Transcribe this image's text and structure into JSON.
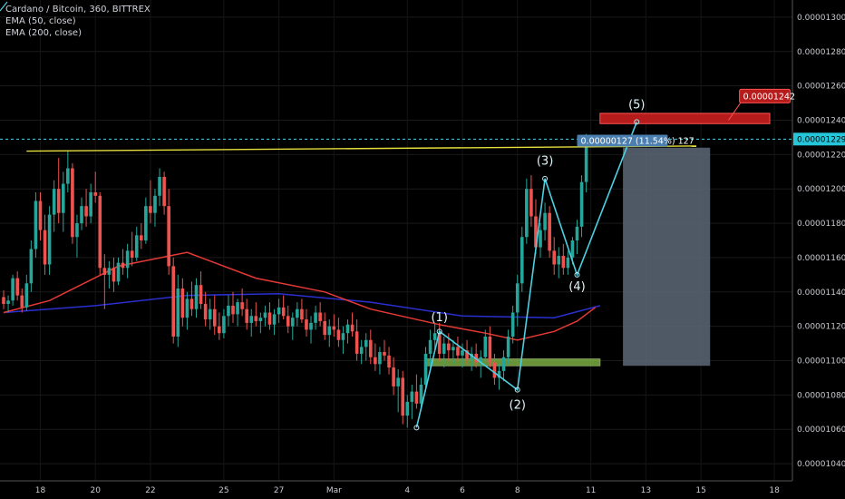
{
  "header": {
    "symbol_line": "Cardano / Bitcoin, 360, BITTREX",
    "indicators": [
      "EMA (50, close)",
      "EMA (200, close)"
    ]
  },
  "chart_data": {
    "type": "candlestick",
    "ylim": [
      1.03e-05,
      1.31e-05
    ],
    "y_ticks": [
      "0.00001300",
      "0.00001280",
      "0.00001260",
      "0.00001240",
      "0.00001220",
      "0.00001200",
      "0.00001180",
      "0.00001160",
      "0.00001140",
      "0.00001120",
      "0.00001100",
      "0.00001080",
      "0.00001060",
      "0.00001040"
    ],
    "y_tick_values": [
      1.3e-05,
      1.28e-05,
      1.26e-05,
      1.24e-05,
      1.22e-05,
      1.2e-05,
      1.18e-05,
      1.16e-05,
      1.14e-05,
      1.12e-05,
      1.1e-05,
      1.08e-05,
      1.06e-05,
      1.04e-05
    ],
    "x_ticks": [
      "18",
      "20",
      "22",
      "25",
      "27",
      "Mar",
      "4",
      "6",
      "8",
      "11",
      "13",
      "15",
      "18"
    ],
    "x_tick_index": [
      8,
      20,
      32,
      48,
      60,
      72,
      88,
      100,
      112,
      128,
      140,
      152,
      168
    ],
    "current_price": "0.00001229",
    "current_price_value": 1.229e-05,
    "target_price": "0.00001242",
    "target_price_value": 1.242e-05,
    "measure_label": "0.00000127 (11.54%) 127",
    "wave_labels": [
      {
        "label": "(1)",
        "index": 95,
        "price": 1.123e-05
      },
      {
        "label": "(2)",
        "index": 112,
        "price": 1.072e-05
      },
      {
        "label": "(3)",
        "index": 118,
        "price": 1.214e-05
      },
      {
        "label": "(4)",
        "index": 125,
        "price": 1.141e-05
      },
      {
        "label": "(5)",
        "index": 138,
        "price": 1.247e-05
      }
    ],
    "wave_points": [
      {
        "index": 90,
        "price": 1.061e-05
      },
      {
        "index": 95,
        "price": 1.117e-05
      },
      {
        "index": 112,
        "price": 1.083e-05
      },
      {
        "index": 118,
        "price": 1.206e-05
      },
      {
        "index": 125,
        "price": 1.15e-05
      },
      {
        "index": 138,
        "price": 1.239e-05
      }
    ],
    "resistance_line": {
      "from": {
        "index": 5,
        "price": 1.222e-05
      },
      "to": {
        "index": 151,
        "price": 1.225e-05
      }
    },
    "support_zone": {
      "from_index": 92,
      "to_index": 130,
      "top": 1.101e-05,
      "bottom": 1.097e-05
    },
    "target_zone": {
      "from_index": 130,
      "to_index": 167,
      "top": 1.244e-05,
      "bottom": 1.238e-05
    },
    "projection_box": {
      "from_index": 135,
      "to_index": 154,
      "top": 1.224e-05,
      "bottom": 1.097e-05
    },
    "ema50": [
      [
        0,
        1.128e-05
      ],
      [
        10,
        1.135e-05
      ],
      [
        25,
        1.155e-05
      ],
      [
        40,
        1.163e-05
      ],
      [
        45,
        1.158e-05
      ],
      [
        55,
        1.148e-05
      ],
      [
        70,
        1.14e-05
      ],
      [
        80,
        1.13e-05
      ],
      [
        95,
        1.121e-05
      ],
      [
        105,
        1.116e-05
      ],
      [
        112,
        1.112e-05
      ],
      [
        120,
        1.117e-05
      ],
      [
        125,
        1.123e-05
      ],
      [
        129,
        1.131e-05
      ]
    ],
    "ema200": [
      [
        0,
        1.128e-05
      ],
      [
        20,
        1.132e-05
      ],
      [
        40,
        1.138e-05
      ],
      [
        60,
        1.139e-05
      ],
      [
        80,
        1.134e-05
      ],
      [
        100,
        1.126e-05
      ],
      [
        120,
        1.125e-05
      ],
      [
        130,
        1.132e-05
      ]
    ],
    "ohlc": [
      [
        1.137e-05,
        1.141e-05,
        1.13e-05,
        1.133e-05
      ],
      [
        1.133e-05,
        1.138e-05,
        1.128e-05,
        1.135e-05
      ],
      [
        1.135e-05,
        1.15e-05,
        1.132e-05,
        1.148e-05
      ],
      [
        1.148e-05,
        1.152e-05,
        1.135e-05,
        1.138e-05
      ],
      [
        1.138e-05,
        1.142e-05,
        1.128e-05,
        1.131e-05
      ],
      [
        1.131e-05,
        1.15e-05,
        1.129e-05,
        1.145e-05
      ],
      [
        1.145e-05,
        1.17e-05,
        1.14e-05,
        1.165e-05
      ],
      [
        1.165e-05,
        1.198e-05,
        1.16e-05,
        1.193e-05
      ],
      [
        1.193e-05,
        1.198e-05,
        1.17e-05,
        1.176e-05
      ],
      [
        1.176e-05,
        1.185e-05,
        1.15e-05,
        1.156e-05
      ],
      [
        1.156e-05,
        1.19e-05,
        1.15e-05,
        1.185e-05
      ],
      [
        1.185e-05,
        1.205e-05,
        1.175e-05,
        1.2e-05
      ],
      [
        1.2e-05,
        1.218e-05,
        1.18e-05,
        1.186e-05
      ],
      [
        1.186e-05,
        1.21e-05,
        1.175e-05,
        1.203e-05
      ],
      [
        1.203e-05,
        1.222e-05,
        1.198e-05,
        1.212e-05
      ],
      [
        1.212e-05,
        1.215e-05,
        1.168e-05,
        1.172e-05
      ],
      [
        1.172e-05,
        1.185e-05,
        1.16e-05,
        1.18e-05
      ],
      [
        1.18e-05,
        1.195e-05,
        1.176e-05,
        1.19e-05
      ],
      [
        1.19e-05,
        1.2e-05,
        1.178e-05,
        1.184e-05
      ],
      [
        1.184e-05,
        1.203e-05,
        1.18e-05,
        1.198e-05
      ],
      [
        1.198e-05,
        1.21e-05,
        1.192e-05,
        1.196e-05
      ],
      [
        1.196e-05,
        1.198e-05,
        1.15e-05,
        1.154e-05
      ],
      [
        1.154e-05,
        1.162e-05,
        1.13e-05,
        1.15e-05
      ],
      [
        1.15e-05,
        1.158e-05,
        1.142e-05,
        1.154e-05
      ],
      [
        1.154e-05,
        1.16e-05,
        1.14e-05,
        1.146e-05
      ],
      [
        1.146e-05,
        1.16e-05,
        1.144e-05,
        1.157e-05
      ],
      [
        1.157e-05,
        1.165e-05,
        1.15e-05,
        1.154e-05
      ],
      [
        1.154e-05,
        1.168e-05,
        1.148e-05,
        1.164e-05
      ],
      [
        1.164e-05,
        1.175e-05,
        1.155e-05,
        1.16e-05
      ],
      [
        1.16e-05,
        1.178e-05,
        1.158e-05,
        1.173e-05
      ],
      [
        1.173e-05,
        1.18e-05,
        1.165e-05,
        1.17e-05
      ],
      [
        1.17e-05,
        1.195e-05,
        1.168e-05,
        1.19e-05
      ],
      [
        1.19e-05,
        1.205e-05,
        1.18e-05,
        1.186e-05
      ],
      [
        1.186e-05,
        1.2e-05,
        1.178e-05,
        1.196e-05
      ],
      [
        1.196e-05,
        1.212e-05,
        1.19e-05,
        1.207e-05
      ],
      [
        1.207e-05,
        1.21e-05,
        1.185e-05,
        1.19e-05
      ],
      [
        1.19e-05,
        1.2e-05,
        1.15e-05,
        1.155e-05
      ],
      [
        1.155e-05,
        1.16e-05,
        1.11e-05,
        1.114e-05
      ],
      [
        1.114e-05,
        1.15e-05,
        1.108e-05,
        1.142e-05
      ],
      [
        1.142e-05,
        1.148e-05,
        1.12e-05,
        1.125e-05
      ],
      [
        1.125e-05,
        1.14e-05,
        1.118e-05,
        1.136e-05
      ],
      [
        1.136e-05,
        1.146e-05,
        1.126e-05,
        1.13e-05
      ],
      [
        1.13e-05,
        1.148e-05,
        1.125e-05,
        1.144e-05
      ],
      [
        1.144e-05,
        1.152e-05,
        1.13e-05,
        1.133e-05
      ],
      [
        1.133e-05,
        1.14e-05,
        1.12e-05,
        1.124e-05
      ],
      [
        1.124e-05,
        1.136e-05,
        1.118e-05,
        1.13e-05
      ],
      [
        1.13e-05,
        1.138e-05,
        1.115e-05,
        1.12e-05
      ],
      [
        1.12e-05,
        1.128e-05,
        1.112e-05,
        1.116e-05
      ],
      [
        1.116e-05,
        1.13e-05,
        1.113e-05,
        1.126e-05
      ],
      [
        1.126e-05,
        1.138e-05,
        1.12e-05,
        1.132e-05
      ],
      [
        1.132e-05,
        1.14e-05,
        1.122e-05,
        1.127e-05
      ],
      [
        1.127e-05,
        1.136e-05,
        1.12e-05,
        1.134e-05
      ],
      [
        1.134e-05,
        1.142e-05,
        1.126e-05,
        1.13e-05
      ],
      [
        1.13e-05,
        1.136e-05,
        1.118e-05,
        1.122e-05
      ],
      [
        1.122e-05,
        1.13e-05,
        1.114e-05,
        1.126e-05
      ],
      [
        1.126e-05,
        1.134e-05,
        1.12e-05,
        1.123e-05
      ],
      [
        1.123e-05,
        1.128e-05,
        1.116e-05,
        1.125e-05
      ],
      [
        1.125e-05,
        1.132e-05,
        1.12e-05,
        1.128e-05
      ],
      [
        1.128e-05,
        1.134e-05,
        1.118e-05,
        1.121e-05
      ],
      [
        1.121e-05,
        1.13e-05,
        1.115e-05,
        1.127e-05
      ],
      [
        1.127e-05,
        1.136e-05,
        1.122e-05,
        1.131e-05
      ],
      [
        1.131e-05,
        1.138e-05,
        1.124e-05,
        1.126e-05
      ],
      [
        1.126e-05,
        1.132e-05,
        1.116e-05,
        1.12e-05
      ],
      [
        1.12e-05,
        1.128e-05,
        1.112e-05,
        1.125e-05
      ],
      [
        1.125e-05,
        1.134e-05,
        1.12e-05,
        1.13e-05
      ],
      [
        1.13e-05,
        1.136e-05,
        1.122e-05,
        1.124e-05
      ],
      [
        1.124e-05,
        1.13e-05,
        1.114e-05,
        1.118e-05
      ],
      [
        1.118e-05,
        1.126e-05,
        1.11e-05,
        1.122e-05
      ],
      [
        1.122e-05,
        1.132e-05,
        1.118e-05,
        1.128e-05
      ],
      [
        1.128e-05,
        1.134e-05,
        1.12e-05,
        1.123e-05
      ],
      [
        1.123e-05,
        1.128e-05,
        1.112e-05,
        1.115e-05
      ],
      [
        1.115e-05,
        1.124e-05,
        1.108e-05,
        1.12e-05
      ],
      [
        1.12e-05,
        1.127e-05,
        1.114e-05,
        1.118e-05
      ],
      [
        1.118e-05,
        1.125e-05,
        1.108e-05,
        1.112e-05
      ],
      [
        1.112e-05,
        1.12e-05,
        1.104e-05,
        1.116e-05
      ],
      [
        1.116e-05,
        1.124e-05,
        1.11e-05,
        1.121e-05
      ],
      [
        1.121e-05,
        1.128e-05,
        1.114e-05,
        1.117e-05
      ],
      [
        1.117e-05,
        1.124e-05,
        1.1e-05,
        1.104e-05
      ],
      [
        1.104e-05,
        1.112e-05,
        1.098e-05,
        1.108e-05
      ],
      [
        1.108e-05,
        1.116e-05,
        1.1e-05,
        1.112e-05
      ],
      [
        1.112e-05,
        1.118e-05,
        1.098e-05,
        1.102e-05
      ],
      [
        1.102e-05,
        1.11e-05,
        1.094e-05,
        1.098e-05
      ],
      [
        1.098e-05,
        1.108e-05,
        1.092e-05,
        1.105e-05
      ],
      [
        1.105e-05,
        1.112e-05,
        1.1e-05,
        1.103e-05
      ],
      [
        1.103e-05,
        1.108e-05,
        1.092e-05,
        1.096e-05
      ],
      [
        1.096e-05,
        1.102e-05,
        1.08e-05,
        1.085e-05
      ],
      [
        1.085e-05,
        1.095e-05,
        1.07e-05,
        1.09e-05
      ],
      [
        1.09e-05,
        1.094e-05,
        1.063e-05,
        1.068e-05
      ],
      [
        1.068e-05,
        1.08e-05,
        1.061e-05,
        1.076e-05
      ],
      [
        1.076e-05,
        1.086e-05,
        1.066e-05,
        1.082e-05
      ],
      [
        1.082e-05,
        1.092e-05,
        1.072e-05,
        1.075e-05
      ],
      [
        1.075e-05,
        1.09e-05,
        1.072e-05,
        1.086e-05
      ],
      [
        1.086e-05,
        1.108e-05,
        1.082e-05,
        1.104e-05
      ],
      [
        1.104e-05,
        1.118e-05,
        1.096e-05,
        1.112e-05
      ],
      [
        1.112e-05,
        1.122e-05,
        1.106e-05,
        1.116e-05
      ],
      [
        1.116e-05,
        1.122e-05,
        1.1e-05,
        1.104e-05
      ],
      [
        1.104e-05,
        1.114e-05,
        1.096e-05,
        1.11e-05
      ],
      [
        1.11e-05,
        1.116e-05,
        1.1e-05,
        1.106e-05
      ],
      [
        1.106e-05,
        1.112e-05,
        1.098e-05,
        1.108e-05
      ],
      [
        1.108e-05,
        1.114e-05,
        1.1e-05,
        1.103e-05
      ],
      [
        1.103e-05,
        1.11e-05,
        1.096e-05,
        1.106e-05
      ],
      [
        1.106e-05,
        1.112e-05,
        1.098e-05,
        1.101e-05
      ],
      [
        1.101e-05,
        1.108e-05,
        1.094e-05,
        1.104e-05
      ],
      [
        1.104e-05,
        1.11e-05,
        1.096e-05,
        1.099e-05
      ],
      [
        1.099e-05,
        1.106e-05,
        1.09e-05,
        1.102e-05
      ],
      [
        1.102e-05,
        1.118e-05,
        1.098e-05,
        1.114e-05
      ],
      [
        1.114e-05,
        1.12e-05,
        1.096e-05,
        1.099e-05
      ],
      [
        1.099e-05,
        1.104e-05,
        1.086e-05,
        1.09e-05
      ],
      [
        1.09e-05,
        1.098e-05,
        1.083e-05,
        1.094e-05
      ],
      [
        1.094e-05,
        1.106e-05,
        1.088e-05,
        1.102e-05
      ],
      [
        1.102e-05,
        1.118e-05,
        1.098e-05,
        1.114e-05
      ],
      [
        1.114e-05,
        1.132e-05,
        1.11e-05,
        1.128e-05
      ],
      [
        1.128e-05,
        1.15e-05,
        1.12e-05,
        1.145e-05
      ],
      [
        1.145e-05,
        1.178e-05,
        1.14e-05,
        1.172e-05
      ],
      [
        1.172e-05,
        1.206e-05,
        1.168e-05,
        1.2e-05
      ],
      [
        1.2e-05,
        1.208e-05,
        1.178e-05,
        1.184e-05
      ],
      [
        1.184e-05,
        1.194e-05,
        1.162e-05,
        1.166e-05
      ],
      [
        1.166e-05,
        1.18e-05,
        1.16e-05,
        1.176e-05
      ],
      [
        1.176e-05,
        1.192e-05,
        1.17e-05,
        1.186e-05
      ],
      [
        1.186e-05,
        1.19e-05,
        1.16e-05,
        1.164e-05
      ],
      [
        1.164e-05,
        1.172e-05,
        1.15e-05,
        1.156e-05
      ],
      [
        1.156e-05,
        1.166e-05,
        1.148e-05,
        1.161e-05
      ],
      [
        1.161e-05,
        1.168e-05,
        1.15e-05,
        1.154e-05
      ],
      [
        1.154e-05,
        1.164e-05,
        1.15e-05,
        1.16e-05
      ],
      [
        1.16e-05,
        1.172e-05,
        1.156e-05,
        1.17e-05
      ],
      [
        1.17e-05,
        1.182e-05,
        1.162e-05,
        1.178e-05
      ],
      [
        1.178e-05,
        1.208e-05,
        1.172e-05,
        1.204e-05
      ],
      [
        1.204e-05,
        1.232e-05,
        1.198e-05,
        1.229e-05
      ]
    ]
  },
  "colors": {
    "up": "#26a69a",
    "down": "#ef5350",
    "ema50": "#e53935",
    "ema200": "#2a2fcf",
    "wave": "#4dd0e1",
    "resistance": "#e5e03c",
    "support": "#8bc34a",
    "target": "#b71c1c",
    "projection": "#5d6877",
    "price_line": "#4dd0e1"
  }
}
